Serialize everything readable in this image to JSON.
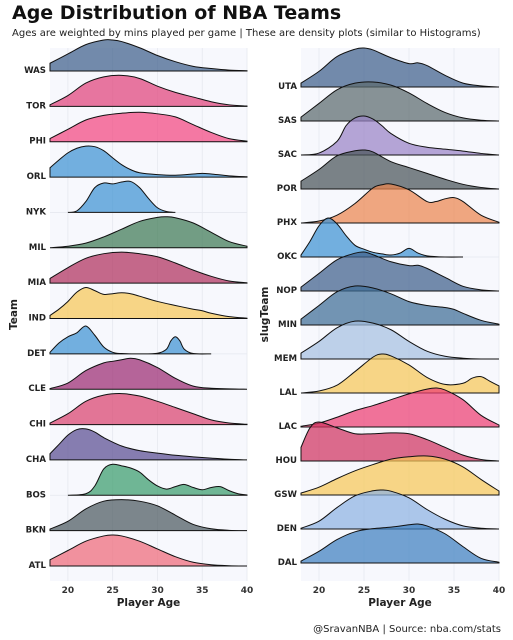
{
  "title": "Age Distribution of NBA Teams",
  "subtitle": "Ages are weighted by mins played per game | These are density plots (similar to Histograms)",
  "caption": "@SravanNBA  | Source: nba.com/stats",
  "chart_data": [
    {
      "type": "ridgeline",
      "xlabel": "Player Age",
      "ylabel": "Team",
      "xlim": [
        18,
        40
      ],
      "xticks": [
        20,
        25,
        30,
        35,
        40
      ],
      "grid": true,
      "series": [
        {
          "name": "WAS",
          "color": "#3E5F8A",
          "x": [
            18,
            20,
            22,
            24,
            25,
            26,
            28,
            30,
            32,
            34,
            36,
            38,
            40
          ],
          "density": [
            0.25,
            0.55,
            0.85,
            1,
            1,
            0.95,
            0.75,
            0.5,
            0.3,
            0.15,
            0.08,
            0.03,
            0.01
          ]
        },
        {
          "name": "TOR",
          "color": "#E0427A",
          "x": [
            18,
            20,
            22,
            24,
            26,
            28,
            30,
            32,
            34,
            36,
            38,
            40
          ],
          "density": [
            0.05,
            0.35,
            0.75,
            0.95,
            1,
            0.9,
            0.65,
            0.45,
            0.3,
            0.15,
            0.05,
            0.01
          ]
        },
        {
          "name": "PHI",
          "color": "#F2477F",
          "x": [
            18,
            20,
            22,
            24,
            26,
            28,
            30,
            32,
            34,
            36,
            38,
            40
          ],
          "density": [
            0.1,
            0.4,
            0.7,
            0.85,
            0.92,
            0.95,
            0.9,
            0.8,
            0.55,
            0.3,
            0.1,
            0.02
          ]
        },
        {
          "name": "ORL",
          "color": "#3F93D2",
          "x": [
            18,
            19,
            20,
            21,
            22,
            23,
            24,
            25,
            26,
            27,
            28,
            30,
            32,
            34,
            35,
            36,
            38,
            40
          ],
          "density": [
            0.3,
            0.55,
            0.78,
            0.93,
            1,
            0.98,
            0.85,
            0.62,
            0.4,
            0.24,
            0.14,
            0.08,
            0.06,
            0.1,
            0.12,
            0.1,
            0.04,
            0.01
          ]
        },
        {
          "name": "NYK",
          "color": "#3F93D2",
          "x": [
            20,
            21,
            22,
            23,
            24,
            25,
            26,
            27,
            28,
            29,
            30,
            31,
            32
          ],
          "density": [
            0,
            0.05,
            0.35,
            0.8,
            0.95,
            0.92,
            0.98,
            1,
            0.8,
            0.45,
            0.15,
            0.03,
            0
          ]
        },
        {
          "name": "MIL",
          "color": "#3E7A55",
          "x": [
            18,
            20,
            22,
            24,
            26,
            28,
            30,
            31,
            32,
            34,
            36,
            38,
            40
          ],
          "density": [
            0,
            0.05,
            0.15,
            0.35,
            0.6,
            0.85,
            0.98,
            1,
            0.97,
            0.8,
            0.5,
            0.2,
            0.05
          ]
        },
        {
          "name": "MIA",
          "color": "#B0305D",
          "x": [
            18,
            20,
            22,
            24,
            26,
            28,
            30,
            32,
            34,
            36,
            38,
            40
          ],
          "density": [
            0.15,
            0.5,
            0.8,
            0.95,
            1,
            0.95,
            0.85,
            0.65,
            0.42,
            0.22,
            0.07,
            0.01
          ]
        },
        {
          "name": "IND",
          "color": "#F7C758",
          "x": [
            18,
            19,
            20,
            21,
            22,
            23,
            24,
            25,
            26,
            27,
            28,
            30,
            32,
            34,
            35,
            36,
            38,
            40
          ],
          "density": [
            0.1,
            0.3,
            0.55,
            0.85,
            1,
            0.9,
            0.78,
            0.8,
            0.83,
            0.8,
            0.72,
            0.55,
            0.42,
            0.3,
            0.25,
            0.17,
            0.06,
            0.01
          ]
        },
        {
          "name": "DET",
          "color": "#3F93D2",
          "x": [
            18,
            19,
            20,
            21,
            22,
            23,
            24,
            25,
            26,
            28,
            30,
            31,
            31.5,
            32,
            32.5,
            33,
            34,
            36
          ],
          "density": [
            0.05,
            0.35,
            0.55,
            0.68,
            0.9,
            0.6,
            0.22,
            0.05,
            0.01,
            0,
            0.02,
            0.15,
            0.42,
            0.55,
            0.42,
            0.15,
            0.01,
            0
          ]
        },
        {
          "name": "CLE",
          "color": "#9B2B72",
          "x": [
            18,
            20,
            22,
            24,
            25,
            26,
            27,
            28,
            30,
            32,
            34,
            36,
            38,
            40
          ],
          "density": [
            0.02,
            0.2,
            0.6,
            0.85,
            0.9,
            0.95,
            1,
            0.95,
            0.7,
            0.35,
            0.1,
            0.03,
            0.01,
            0
          ]
        },
        {
          "name": "CHI",
          "color": "#D9426D",
          "x": [
            18,
            20,
            22,
            24,
            26,
            28,
            30,
            32,
            34,
            36,
            38,
            40
          ],
          "density": [
            0.05,
            0.35,
            0.75,
            0.95,
            1,
            0.92,
            0.75,
            0.55,
            0.35,
            0.15,
            0.05,
            0.01
          ]
        },
        {
          "name": "CHA",
          "color": "#5A4E92",
          "x": [
            18,
            19,
            20,
            21,
            22,
            23,
            24,
            26,
            28,
            30,
            32,
            34,
            36,
            38,
            40
          ],
          "density": [
            0.2,
            0.5,
            0.8,
            0.98,
            1,
            0.9,
            0.72,
            0.45,
            0.3,
            0.22,
            0.15,
            0.1,
            0.06,
            0.02,
            0
          ]
        },
        {
          "name": "BOS",
          "color": "#3A9D6C",
          "x": [
            20,
            22,
            23,
            24,
            25,
            26,
            27,
            28,
            29,
            30,
            31,
            32,
            33,
            34,
            35,
            36,
            37,
            38,
            39,
            40
          ],
          "density": [
            0,
            0.05,
            0.3,
            0.85,
            1,
            0.95,
            0.88,
            0.75,
            0.5,
            0.3,
            0.2,
            0.28,
            0.35,
            0.25,
            0.18,
            0.25,
            0.28,
            0.15,
            0.05,
            0.01
          ]
        },
        {
          "name": "BKN",
          "color": "#4C5A5F",
          "x": [
            18,
            20,
            22,
            24,
            26,
            28,
            30,
            32,
            34,
            36,
            38,
            40
          ],
          "density": [
            0.05,
            0.3,
            0.7,
            0.95,
            1,
            0.95,
            0.8,
            0.5,
            0.2,
            0.06,
            0.01,
            0
          ]
        },
        {
          "name": "ATL",
          "color": "#EE6A78",
          "x": [
            18,
            20,
            22,
            24,
            25,
            26,
            28,
            30,
            32,
            34,
            36,
            38,
            40
          ],
          "density": [
            0.2,
            0.5,
            0.8,
            0.97,
            1,
            0.97,
            0.8,
            0.55,
            0.3,
            0.12,
            0.04,
            0.01,
            0
          ]
        }
      ]
    },
    {
      "type": "ridgeline",
      "xlabel": "Player Age",
      "ylabel": "slugTeam",
      "xlim": [
        18,
        40
      ],
      "xticks": [
        20,
        25,
        30,
        35,
        40
      ],
      "grid": true,
      "series": [
        {
          "name": "UTA",
          "color": "#3E5F8A",
          "x": [
            18,
            20,
            22,
            24,
            25,
            26,
            28,
            30,
            31,
            32,
            34,
            36,
            38,
            40
          ],
          "density": [
            0.1,
            0.4,
            0.78,
            0.97,
            1,
            0.95,
            0.75,
            0.6,
            0.62,
            0.55,
            0.3,
            0.1,
            0.03,
            0
          ]
        },
        {
          "name": "SAS",
          "color": "#5B6B6E",
          "x": [
            18,
            20,
            22,
            24,
            26,
            28,
            30,
            32,
            34,
            36,
            38,
            40
          ],
          "density": [
            0.1,
            0.45,
            0.8,
            0.97,
            1,
            0.92,
            0.72,
            0.45,
            0.22,
            0.08,
            0.02,
            0
          ]
        },
        {
          "name": "SAC",
          "color": "#9A84C6",
          "x": [
            18,
            20,
            22,
            23,
            24,
            25,
            26,
            27,
            28,
            30,
            32,
            34,
            36,
            38,
            40
          ],
          "density": [
            0,
            0.05,
            0.35,
            0.75,
            0.95,
            1,
            0.92,
            0.75,
            0.55,
            0.3,
            0.2,
            0.15,
            0.1,
            0.04,
            0
          ]
        },
        {
          "name": "POR",
          "color": "#4A5559",
          "x": [
            18,
            20,
            22,
            24,
            25,
            26,
            28,
            30,
            32,
            34,
            36,
            38,
            40
          ],
          "density": [
            0.2,
            0.5,
            0.85,
            0.98,
            1,
            0.95,
            0.7,
            0.55,
            0.4,
            0.25,
            0.12,
            0.04,
            0
          ]
        },
        {
          "name": "PHX",
          "color": "#EC864F",
          "x": [
            18,
            20,
            22,
            24,
            26,
            27,
            28,
            30,
            32,
            33,
            34,
            35,
            36,
            38,
            40
          ],
          "density": [
            0,
            0.05,
            0.2,
            0.5,
            0.9,
            0.98,
            1,
            0.85,
            0.55,
            0.55,
            0.62,
            0.65,
            0.55,
            0.2,
            0.02
          ]
        },
        {
          "name": "OKC",
          "color": "#3F93D2",
          "x": [
            18,
            19,
            20,
            21,
            22,
            23,
            24,
            25,
            26,
            27,
            28,
            29,
            30,
            31,
            32,
            34,
            36
          ],
          "density": [
            0.05,
            0.4,
            0.8,
            1,
            0.85,
            0.55,
            0.3,
            0.2,
            0.12,
            0.08,
            0.05,
            0.1,
            0.22,
            0.1,
            0.03,
            0,
            0
          ]
        },
        {
          "name": "NOP",
          "color": "#3E5F8A",
          "x": [
            18,
            20,
            22,
            24,
            25,
            26,
            28,
            30,
            31,
            32,
            34,
            36,
            38,
            40
          ],
          "density": [
            0.1,
            0.45,
            0.8,
            0.97,
            1,
            0.93,
            0.75,
            0.65,
            0.66,
            0.58,
            0.35,
            0.12,
            0.03,
            0
          ]
        },
        {
          "name": "MIN",
          "color": "#3E6E96",
          "x": [
            18,
            20,
            22,
            24,
            26,
            28,
            30,
            32,
            34,
            35,
            36,
            38,
            40
          ],
          "density": [
            0.15,
            0.5,
            0.85,
            1,
            0.95,
            0.8,
            0.6,
            0.5,
            0.45,
            0.4,
            0.3,
            0.12,
            0.02
          ]
        },
        {
          "name": "MEM",
          "color": "#A6C0E0",
          "x": [
            18,
            20,
            22,
            24,
            26,
            28,
            30,
            32,
            34,
            36,
            38,
            40
          ],
          "density": [
            0.15,
            0.45,
            0.8,
            0.97,
            0.92,
            0.75,
            0.45,
            0.2,
            0.07,
            0.02,
            0,
            0
          ]
        },
        {
          "name": "LAL",
          "color": "#F7C758",
          "x": [
            18,
            20,
            22,
            24,
            26,
            27,
            28,
            30,
            32,
            34,
            36,
            37,
            38,
            39,
            40
          ],
          "density": [
            0,
            0.05,
            0.2,
            0.55,
            0.92,
            1,
            0.95,
            0.72,
            0.4,
            0.22,
            0.25,
            0.38,
            0.42,
            0.3,
            0.18
          ]
        },
        {
          "name": "LAC",
          "color": "#ED3F72",
          "x": [
            18,
            20,
            22,
            24,
            26,
            28,
            30,
            32,
            33,
            34,
            36,
            38,
            40
          ],
          "density": [
            0.02,
            0.1,
            0.25,
            0.42,
            0.55,
            0.7,
            0.85,
            0.97,
            1,
            0.95,
            0.7,
            0.3,
            0.05
          ]
        },
        {
          "name": "HOU",
          "color": "#D0335F",
          "x": [
            18,
            19,
            20,
            22,
            24,
            26,
            28,
            30,
            32,
            34,
            36,
            38,
            40
          ],
          "density": [
            0.35,
            0.85,
            1,
            0.85,
            0.7,
            0.7,
            0.72,
            0.7,
            0.55,
            0.35,
            0.15,
            0.04,
            0
          ]
        },
        {
          "name": "GSW",
          "color": "#F7C758",
          "x": [
            18,
            20,
            22,
            24,
            26,
            28,
            30,
            32,
            34,
            36,
            38,
            40
          ],
          "density": [
            0.05,
            0.2,
            0.42,
            0.62,
            0.78,
            0.92,
            0.98,
            1,
            0.92,
            0.72,
            0.4,
            0.1
          ]
        },
        {
          "name": "DEN",
          "color": "#8DB3E2",
          "x": [
            18,
            20,
            22,
            24,
            26,
            27,
            28,
            30,
            32,
            34,
            36,
            38,
            40
          ],
          "density": [
            0.02,
            0.2,
            0.55,
            0.85,
            0.98,
            1,
            0.97,
            0.8,
            0.5,
            0.25,
            0.08,
            0.02,
            0
          ]
        },
        {
          "name": "DAL",
          "color": "#3F7FBF",
          "x": [
            18,
            20,
            22,
            24,
            26,
            28,
            30,
            31,
            32,
            34,
            36,
            38,
            40
          ],
          "density": [
            0.05,
            0.3,
            0.6,
            0.8,
            0.88,
            0.92,
            0.98,
            1,
            0.95,
            0.75,
            0.42,
            0.12,
            0.02
          ]
        }
      ]
    }
  ]
}
